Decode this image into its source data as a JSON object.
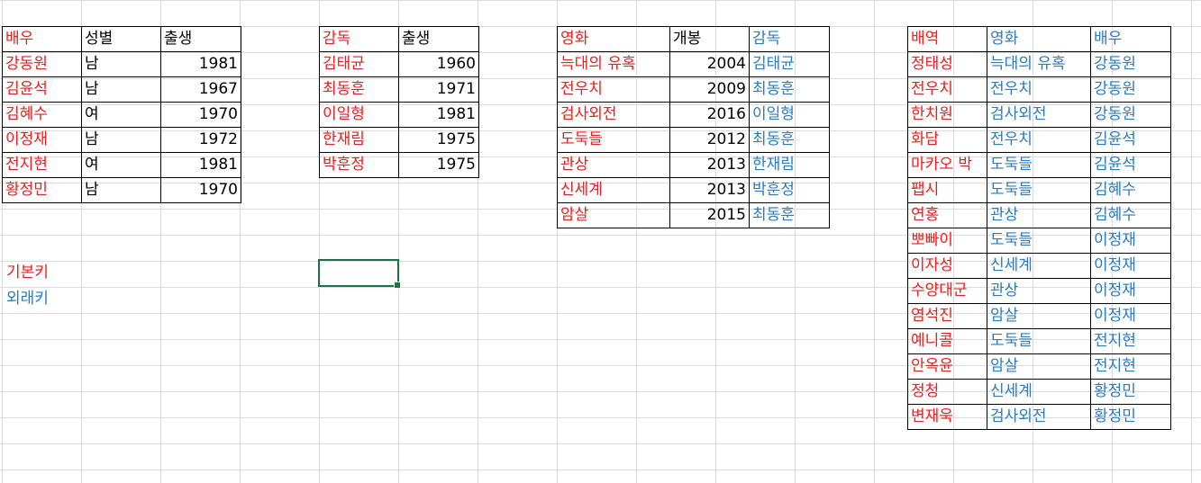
{
  "actors": {
    "headers": [
      "배우",
      "성별",
      "출생"
    ],
    "rows": [
      [
        "강동원",
        "남",
        "1981"
      ],
      [
        "김윤석",
        "남",
        "1967"
      ],
      [
        "김혜수",
        "여",
        "1970"
      ],
      [
        "이정재",
        "남",
        "1972"
      ],
      [
        "전지현",
        "여",
        "1981"
      ],
      [
        "황정민",
        "남",
        "1970"
      ]
    ]
  },
  "directors": {
    "headers": [
      "감독",
      "출생"
    ],
    "rows": [
      [
        "김태균",
        "1960"
      ],
      [
        "최동훈",
        "1971"
      ],
      [
        "이일형",
        "1981"
      ],
      [
        "한재림",
        "1975"
      ],
      [
        "박훈정",
        "1975"
      ]
    ]
  },
  "movies": {
    "headers": [
      "영화",
      "개봉",
      "감독"
    ],
    "rows": [
      [
        "늑대의 유혹",
        "2004",
        "김태균"
      ],
      [
        "전우치",
        "2009",
        "최동훈"
      ],
      [
        "검사외전",
        "2016",
        "이일형"
      ],
      [
        "도둑들",
        "2012",
        "최동훈"
      ],
      [
        "관상",
        "2013",
        "한재림"
      ],
      [
        "신세계",
        "2013",
        "박훈정"
      ],
      [
        "암살",
        "2015",
        "최동훈"
      ]
    ]
  },
  "roles": {
    "headers": [
      "배역",
      "영화",
      "배우"
    ],
    "rows": [
      [
        "정태성",
        "늑대의 유혹",
        "강동원"
      ],
      [
        "전우치",
        "전우치",
        "강동원"
      ],
      [
        "한치원",
        "검사외전",
        "강동원"
      ],
      [
        "화담",
        "전우치",
        "김윤석"
      ],
      [
        "마카오 박",
        "도둑들",
        "김윤석"
      ],
      [
        "팹시",
        "도둑들",
        "김혜수"
      ],
      [
        "연홍",
        "관상",
        "김혜수"
      ],
      [
        "뽀빠이",
        "도둑들",
        "이정재"
      ],
      [
        "이자성",
        "신세계",
        "이정재"
      ],
      [
        "수양대군",
        "관상",
        "이정재"
      ],
      [
        "염석진",
        "암살",
        "이정재"
      ],
      [
        "예니콜",
        "도둑들",
        "전지현"
      ],
      [
        "안옥윤",
        "암살",
        "전지현"
      ],
      [
        "정청",
        "신세계",
        "황정민"
      ],
      [
        "변재욱",
        "검사외전",
        "황정민"
      ]
    ]
  },
  "legend": {
    "primary_key": "기본키",
    "foreign_key": "외래키"
  },
  "colors": {
    "primary_key": "#ee1c1c",
    "foreign_key": "#2b7ac2",
    "selection": "#1e7145"
  }
}
